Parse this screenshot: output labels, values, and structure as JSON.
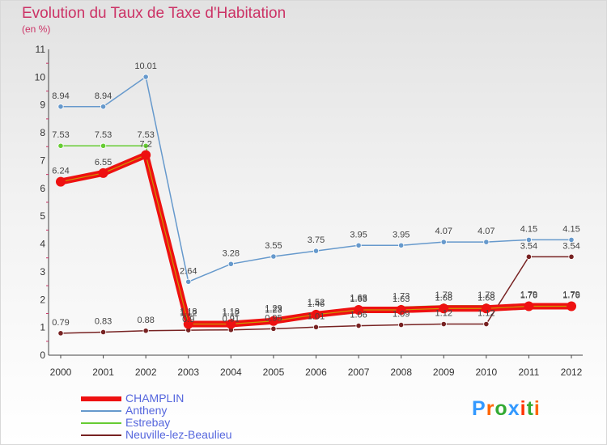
{
  "title": "Evolution du Taux de Taxe d'Habitation",
  "subtitle": "(en %)",
  "logo": {
    "text": "Proxiti",
    "colors": [
      "#3399ff",
      "#ff6600",
      "#33aa33",
      "#3399ff",
      "#ff3300",
      "#33aa33",
      "#ff6600"
    ]
  },
  "chart_data": {
    "type": "line",
    "title": "Evolution du Taux de Taxe d'Habitation",
    "ylabel": "(en %)",
    "xlabel": "",
    "ylim": [
      0,
      11
    ],
    "yticks": [
      "0",
      "1",
      "2",
      "3",
      "4",
      "5",
      "6",
      "7",
      "8",
      "9",
      "10",
      "11"
    ],
    "x": [
      "2000",
      "2001",
      "2002",
      "2003",
      "2004",
      "2005",
      "2006",
      "2007",
      "2008",
      "2009",
      "2010",
      "2011",
      "2012"
    ],
    "grid": false,
    "legend_position": "bottom-left",
    "series": [
      {
        "name": "Neuville-lez-Beaulieu",
        "color": "#772222",
        "values": [
          0.79,
          0.83,
          0.88,
          0.9,
          0.91,
          0.95,
          1.01,
          1.06,
          1.09,
          1.12,
          1.12,
          3.54,
          3.54
        ],
        "labels": [
          "0.79",
          "0.83",
          "0.88",
          "0.9",
          "0.91",
          "0.95",
          "1.01",
          "1.06",
          "1.09",
          "1.12",
          "1.12",
          "3.54",
          "3.54"
        ]
      },
      {
        "name": "Antheny",
        "color": "#6699cc",
        "values": [
          8.94,
          8.94,
          10.01,
          2.64,
          3.28,
          3.55,
          3.75,
          3.95,
          3.95,
          4.07,
          4.07,
          4.15,
          4.15
        ],
        "labels": [
          "8.94",
          "8.94",
          "10.01",
          "2.64",
          "3.28",
          "3.55",
          "3.75",
          "3.95",
          "3.95",
          "4.07",
          "4.07",
          "4.15",
          "4.15"
        ]
      },
      {
        "name": "Estrebay",
        "color": "#66cc33",
        "values": [
          7.53,
          7.53,
          7.53,
          1.18,
          1.18,
          1.29,
          1.52,
          1.68,
          1.73,
          1.78,
          1.78,
          1.79,
          1.79
        ],
        "labels": [
          "7.53",
          "7.53",
          "7.53",
          "1.18",
          "1.18",
          "1.29",
          "1.52",
          "1.68",
          "1.73",
          "1.78",
          "1.78",
          "1.79",
          "1.79"
        ]
      },
      {
        "name": "CHAMPLIN",
        "color": "#ee1111",
        "values": [
          6.24,
          6.55,
          7.2,
          1.12,
          1.12,
          1.23,
          1.46,
          1.63,
          1.63,
          1.68,
          1.68,
          1.76,
          1.76
        ],
        "labels": [
          "6.24",
          "6.55",
          "7.2",
          "1.12",
          "1.12",
          "1.23",
          "1.46",
          "1.63",
          "1.63",
          "1.68",
          "1.68",
          "1.76",
          "1.76"
        ]
      }
    ]
  },
  "legend": [
    {
      "name": "CHAMPLIN",
      "color": "#ee1111"
    },
    {
      "name": "Antheny",
      "color": "#6699cc"
    },
    {
      "name": "Estrebay",
      "color": "#66cc33"
    },
    {
      "name": "Neuville-lez-Beaulieu",
      "color": "#772222"
    }
  ]
}
